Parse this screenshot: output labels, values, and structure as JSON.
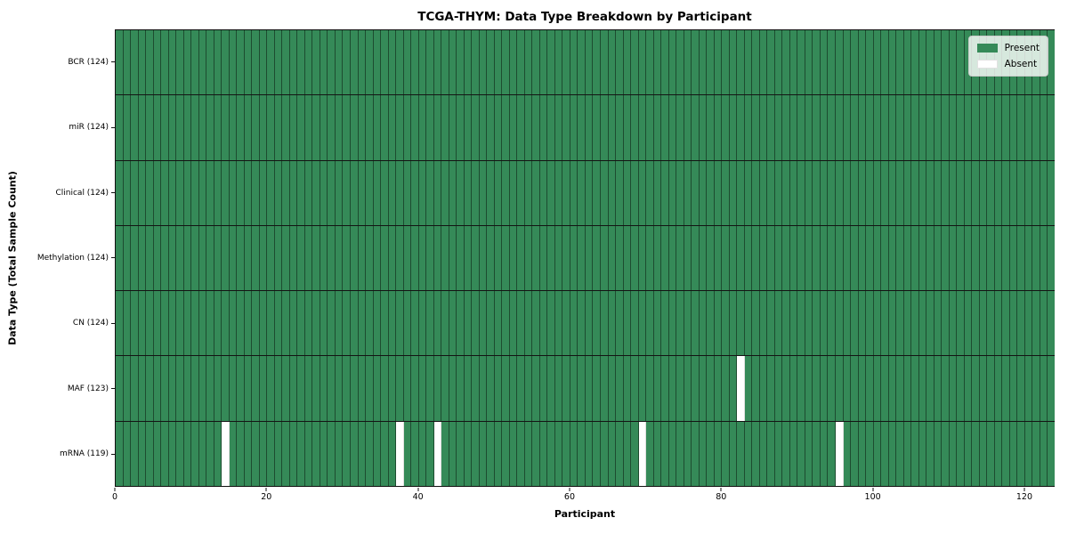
{
  "chart_data": {
    "type": "heatmap",
    "title": "TCGA-THYM: Data Type Breakdown by Participant",
    "xlabel": "Participant",
    "ylabel": "Data Type (Total Sample Count)",
    "x_ticks": [
      0,
      20,
      40,
      60,
      80,
      100,
      120
    ],
    "x_range": [
      0,
      124
    ],
    "n_participants": 124,
    "grid": "off",
    "rows": [
      {
        "label": "BCR (124)",
        "data_type": "BCR",
        "present_count": 124,
        "absent_participants": []
      },
      {
        "label": "miR (124)",
        "data_type": "miR",
        "present_count": 124,
        "absent_participants": []
      },
      {
        "label": "Clinical (124)",
        "data_type": "Clinical",
        "present_count": 124,
        "absent_participants": []
      },
      {
        "label": "Methylation (124)",
        "data_type": "Methylation",
        "present_count": 124,
        "absent_participants": []
      },
      {
        "label": "CN (124)",
        "data_type": "CN",
        "present_count": 124,
        "absent_participants": []
      },
      {
        "label": "MAF (123)",
        "data_type": "MAF",
        "present_count": 123,
        "absent_participants": [
          82
        ]
      },
      {
        "label": "mRNA (119)",
        "data_type": "mRNA",
        "present_count": 119,
        "absent_participants": [
          14,
          37,
          42,
          69,
          95
        ]
      }
    ],
    "legend": {
      "position": "upper right",
      "entries": [
        {
          "label": "Present",
          "color": "#358a58"
        },
        {
          "label": "Absent",
          "color": "#ffffff"
        }
      ]
    },
    "colors": {
      "present": "#358a58",
      "absent": "#ffffff",
      "cell_border": "rgba(0,0,0,0.45)",
      "row_divider": "#141414",
      "spine": "#111111"
    }
  }
}
